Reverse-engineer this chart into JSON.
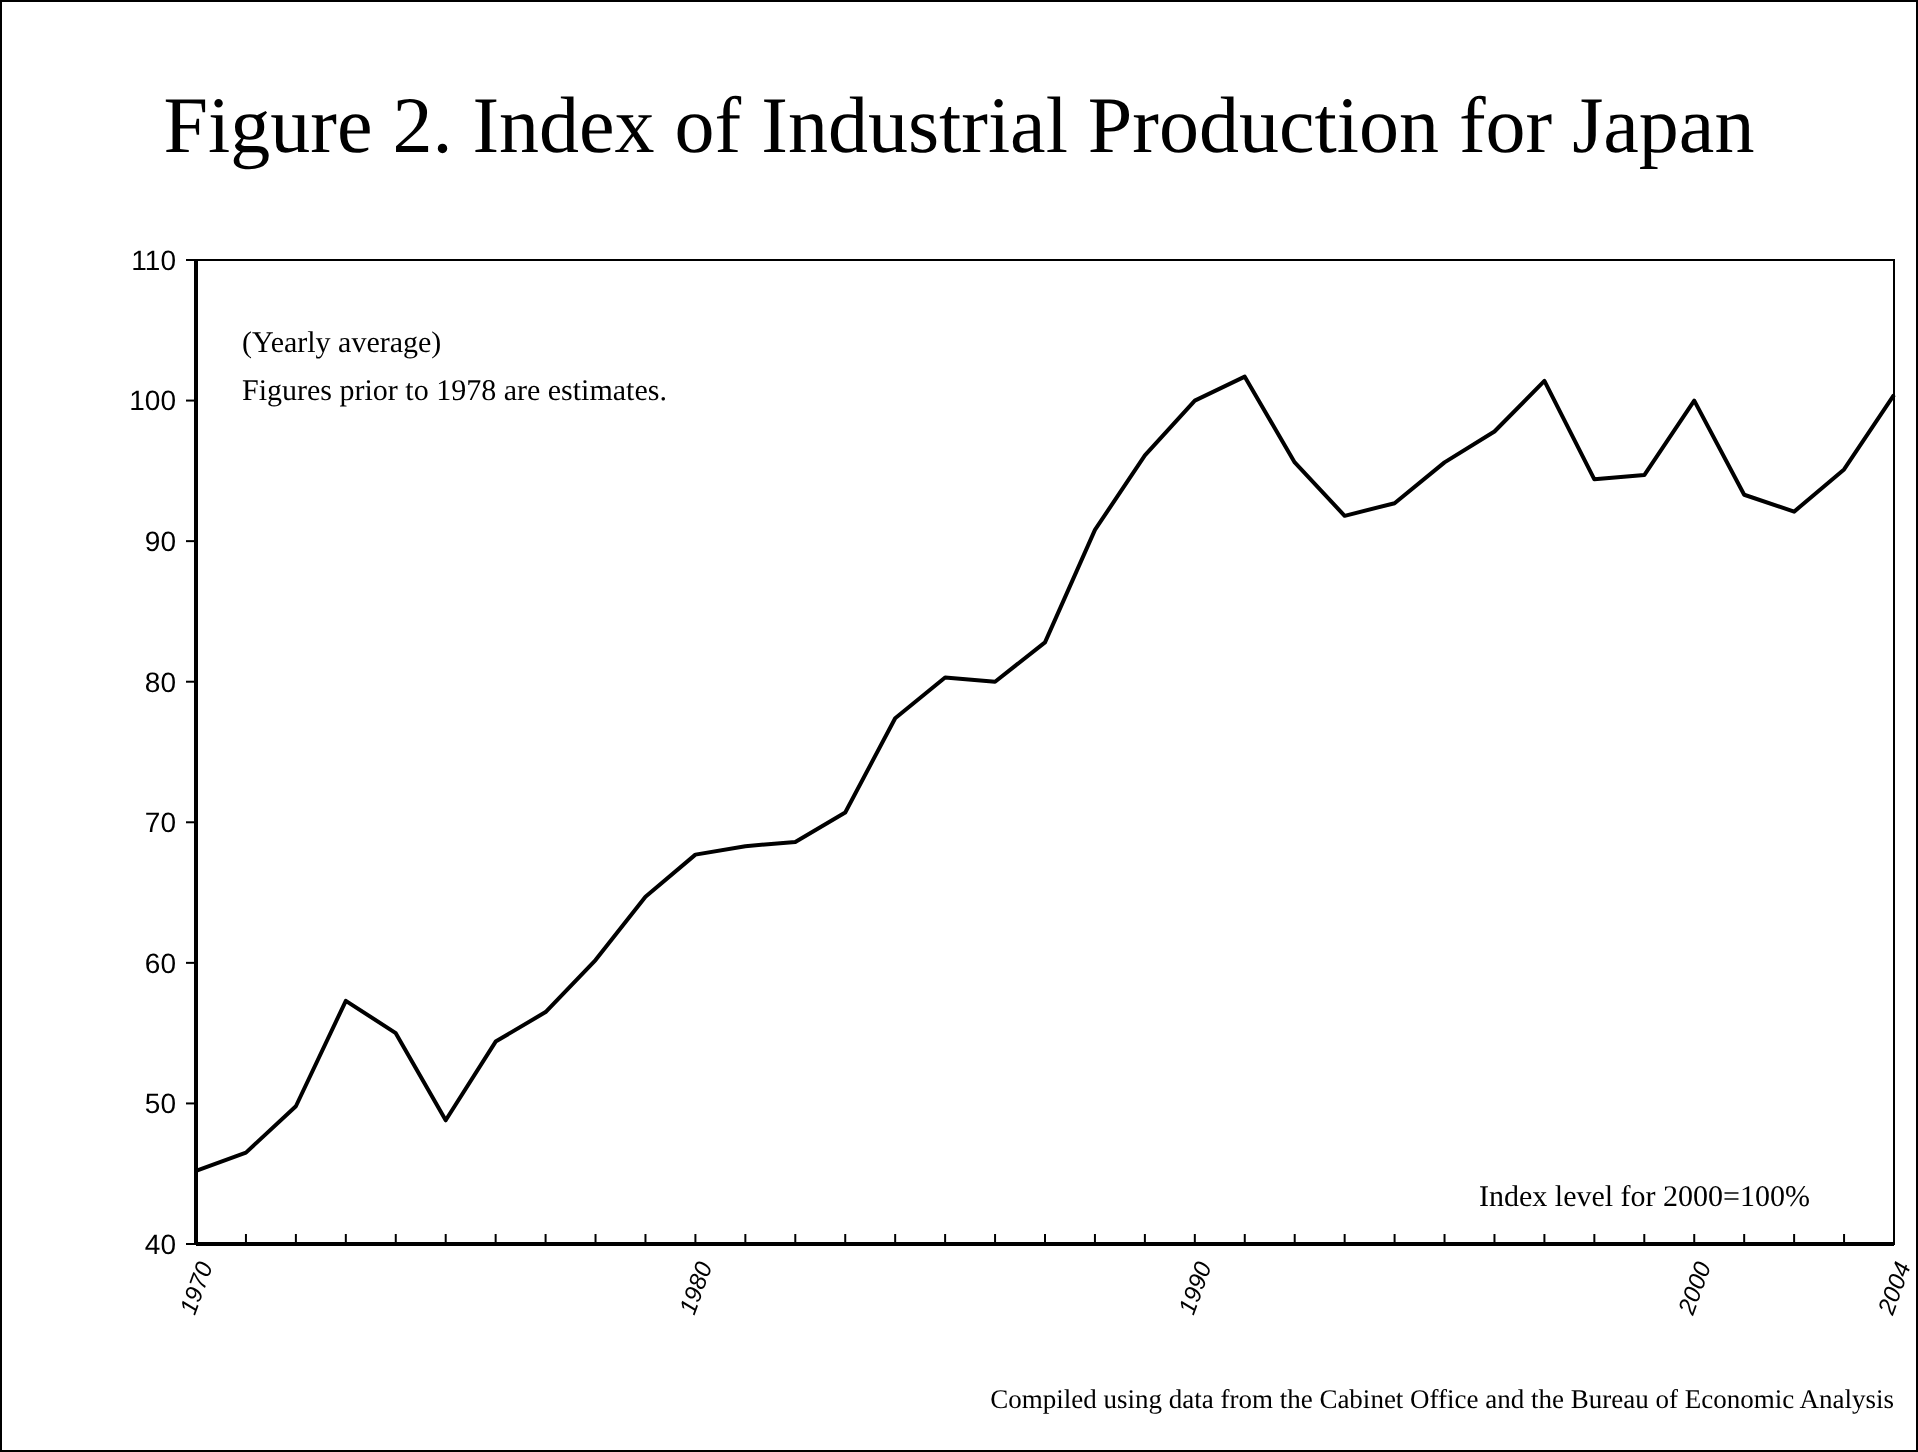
{
  "chart_data": {
    "type": "line",
    "title": "Figure 2. Index of Industrial Production for Japan",
    "x": [
      1970,
      1971,
      1972,
      1973,
      1974,
      1975,
      1976,
      1977,
      1978,
      1979,
      1980,
      1981,
      1982,
      1983,
      1984,
      1985,
      1986,
      1987,
      1988,
      1989,
      1990,
      1991,
      1992,
      1993,
      1994,
      1995,
      1996,
      1997,
      1998,
      1999,
      2000,
      2001,
      2002,
      2003,
      2004
    ],
    "series": [
      {
        "color": "#000000",
        "values": [
          45.2,
          46.5,
          49.8,
          57.3,
          55.0,
          48.8,
          54.4,
          56.5,
          60.2,
          64.7,
          67.7,
          68.3,
          68.6,
          70.7,
          77.4,
          80.3,
          80.0,
          82.8,
          90.8,
          96.1,
          100.0,
          101.7,
          95.6,
          91.8,
          92.7,
          95.6,
          97.8,
          101.4,
          94.4,
          94.7,
          100.0,
          93.3,
          92.1,
          95.1,
          100.4
        ]
      }
    ],
    "xlim": [
      1970,
      2004
    ],
    "xticks": [
      1970,
      {
        "value": 1971,
        "label": null
      },
      {
        "value": 1972,
        "label": null
      },
      {
        "value": 1973,
        "label": null
      },
      {
        "value": 1974,
        "label": null
      },
      {
        "value": 1975,
        "label": null
      },
      {
        "value": 1976,
        "label": null
      },
      {
        "value": 1977,
        "label": null
      },
      {
        "value": 1978,
        "label": null
      },
      {
        "value": 1979,
        "label": null
      },
      1980,
      {
        "value": 1981,
        "label": null
      },
      {
        "value": 1982,
        "label": null
      },
      {
        "value": 1983,
        "label": null
      },
      {
        "value": 1984,
        "label": null
      },
      {
        "value": 1985,
        "label": null
      },
      {
        "value": 1986,
        "label": null
      },
      {
        "value": 1987,
        "label": null
      },
      {
        "value": 1988,
        "label": null
      },
      {
        "value": 1989,
        "label": null
      },
      1990,
      {
        "value": 1991,
        "label": null
      },
      {
        "value": 1992,
        "label": null
      },
      {
        "value": 1993,
        "label": null
      },
      {
        "value": 1994,
        "label": null
      },
      {
        "value": 1995,
        "label": null
      },
      {
        "value": 1996,
        "label": null
      },
      {
        "value": 1997,
        "label": null
      },
      {
        "value": 1998,
        "label": null
      },
      {
        "value": 1999,
        "label": null
      },
      2000,
      {
        "value": 2001,
        "label": null
      },
      {
        "value": 2002,
        "label": null
      },
      {
        "value": 2003,
        "label": null
      },
      2004
    ],
    "ylim": [
      40,
      110
    ],
    "yticks": [
      40,
      50,
      60,
      70,
      80,
      90,
      100,
      110
    ],
    "grid": false,
    "marker": "none",
    "line_style": "solid",
    "annotations": [
      "(Yearly average)",
      "Figures prior to 1978 are estimates.",
      "Index level for 2000=100%",
      "Compiled using data from the Cabinet Office and the Bureau of Economic Analysis"
    ]
  }
}
